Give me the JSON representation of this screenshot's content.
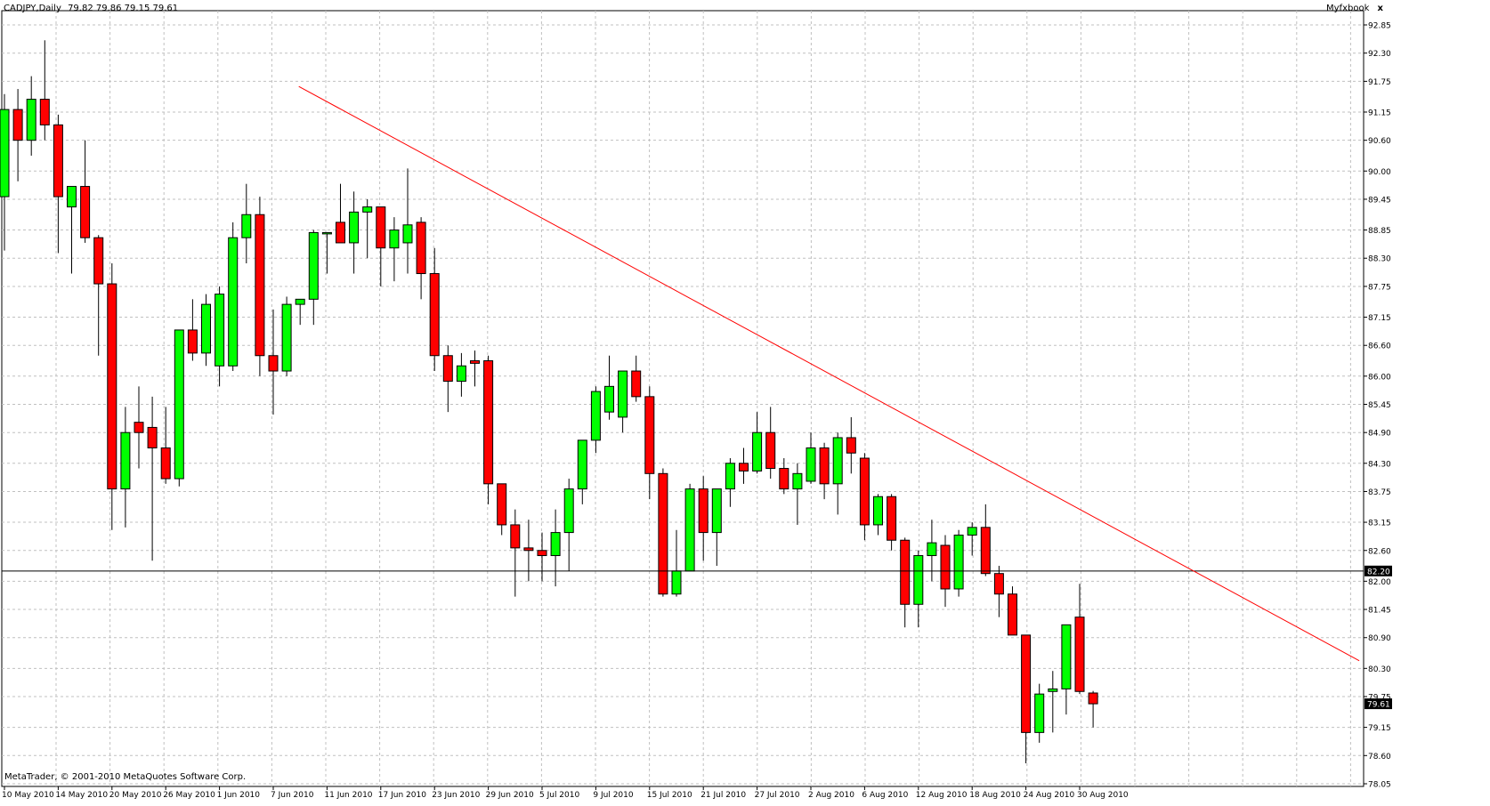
{
  "header": {
    "symbol": "CADJPY,Daily",
    "ohlc": "79.82 79.86 79.15 79.61",
    "panel_name": "Myfxbook",
    "close_glyph": "x"
  },
  "footer": {
    "copyright": "MetaTrader, © 2001-2010 MetaQuotes Software Corp."
  },
  "colors": {
    "background": "#ffffff",
    "grid": "#c0c0c0",
    "bull_body": "#00ff00",
    "bear_body": "#ff0000",
    "wick": "#000000",
    "trendline": "#ff0000",
    "hline": "#000000",
    "price_tag_bg": "#000000",
    "price_tag_text": "#ffffff"
  },
  "chart_data": {
    "type": "candlestick",
    "symbol": "CADJPY",
    "timeframe": "Daily",
    "ylim": [
      78.05,
      92.85
    ],
    "grid": true,
    "y_ticks": [
      "92.85",
      "92.30",
      "91.75",
      "91.15",
      "90.60",
      "90.00",
      "89.45",
      "88.85",
      "88.30",
      "87.75",
      "87.15",
      "86.60",
      "86.00",
      "85.45",
      "84.90",
      "84.30",
      "83.75",
      "83.15",
      "82.60",
      "82.00",
      "81.45",
      "80.90",
      "80.30",
      "79.75",
      "79.15",
      "78.60",
      "78.05"
    ],
    "x_ticks": [
      "10 May 2010",
      "14 May 2010",
      "20 May 2010",
      "26 May 2010",
      "1 Jun 2010",
      "7 Jun 2010",
      "11 Jun 2010",
      "17 Jun 2010",
      "23 Jun 2010",
      "29 Jun 2010",
      "5 Jul 2010",
      "9 Jul 2010",
      "15 Jul 2010",
      "21 Jul 2010",
      "27 Jul 2010",
      "2 Aug 2010",
      "6 Aug 2010",
      "12 Aug 2010",
      "18 Aug 2010",
      "24 Aug 2010",
      "30 Aug 2010"
    ],
    "candles": [
      {
        "o": 89.5,
        "h": 91.5,
        "l": 88.45,
        "c": 91.2
      },
      {
        "o": 91.2,
        "h": 91.6,
        "l": 89.8,
        "c": 90.6
      },
      {
        "o": 90.6,
        "h": 91.85,
        "l": 90.3,
        "c": 91.4
      },
      {
        "o": 91.4,
        "h": 92.55,
        "l": 90.6,
        "c": 90.9
      },
      {
        "o": 90.9,
        "h": 91.1,
        "l": 88.4,
        "c": 89.5
      },
      {
        "o": 89.3,
        "h": 89.6,
        "l": 88.0,
        "c": 89.7
      },
      {
        "o": 89.7,
        "h": 90.6,
        "l": 88.6,
        "c": 88.7
      },
      {
        "o": 88.7,
        "h": 88.75,
        "l": 86.4,
        "c": 87.8
      },
      {
        "o": 87.8,
        "h": 88.2,
        "l": 83.0,
        "c": 83.8
      },
      {
        "o": 83.8,
        "h": 85.4,
        "l": 83.05,
        "c": 84.9
      },
      {
        "o": 85.1,
        "h": 85.8,
        "l": 84.2,
        "c": 84.9
      },
      {
        "o": 85.0,
        "h": 85.6,
        "l": 82.4,
        "c": 84.6
      },
      {
        "o": 84.6,
        "h": 85.4,
        "l": 83.9,
        "c": 84.0
      },
      {
        "o": 84.0,
        "h": 86.9,
        "l": 83.85,
        "c": 86.9
      },
      {
        "o": 86.9,
        "h": 87.5,
        "l": 86.3,
        "c": 86.45
      },
      {
        "o": 86.45,
        "h": 87.6,
        "l": 86.2,
        "c": 87.4
      },
      {
        "o": 86.2,
        "h": 87.75,
        "l": 85.8,
        "c": 87.6
      },
      {
        "o": 86.2,
        "h": 89.0,
        "l": 86.1,
        "c": 88.7
      },
      {
        "o": 88.7,
        "h": 89.75,
        "l": 88.2,
        "c": 89.15
      },
      {
        "o": 89.15,
        "h": 89.5,
        "l": 86.0,
        "c": 86.4
      },
      {
        "o": 86.4,
        "h": 87.3,
        "l": 85.25,
        "c": 86.1
      },
      {
        "o": 86.1,
        "h": 87.55,
        "l": 86.0,
        "c": 87.4
      },
      {
        "o": 87.4,
        "h": 87.5,
        "l": 87.0,
        "c": 87.5
      },
      {
        "o": 87.5,
        "h": 88.85,
        "l": 87.0,
        "c": 88.8
      },
      {
        "o": 88.8,
        "h": 88.8,
        "l": 88.0,
        "c": 88.8
      },
      {
        "o": 89.0,
        "h": 89.75,
        "l": 88.7,
        "c": 88.6
      },
      {
        "o": 88.6,
        "h": 89.6,
        "l": 88.0,
        "c": 89.2
      },
      {
        "o": 89.2,
        "h": 89.45,
        "l": 88.3,
        "c": 89.3
      },
      {
        "o": 89.3,
        "h": 89.3,
        "l": 87.75,
        "c": 88.5
      },
      {
        "o": 88.5,
        "h": 89.1,
        "l": 87.85,
        "c": 88.85
      },
      {
        "o": 88.6,
        "h": 90.05,
        "l": 88.0,
        "c": 88.95
      },
      {
        "o": 89.0,
        "h": 89.1,
        "l": 87.5,
        "c": 88.0
      },
      {
        "o": 88.0,
        "h": 88.5,
        "l": 86.1,
        "c": 86.4
      },
      {
        "o": 86.4,
        "h": 86.6,
        "l": 85.3,
        "c": 85.9
      },
      {
        "o": 85.9,
        "h": 86.45,
        "l": 85.6,
        "c": 86.2
      },
      {
        "o": 86.3,
        "h": 86.5,
        "l": 85.8,
        "c": 86.25
      },
      {
        "o": 86.3,
        "h": 86.4,
        "l": 83.5,
        "c": 83.9
      },
      {
        "o": 83.9,
        "h": 83.9,
        "l": 82.9,
        "c": 83.1
      },
      {
        "o": 83.1,
        "h": 83.4,
        "l": 81.7,
        "c": 82.65
      },
      {
        "o": 82.65,
        "h": 83.2,
        "l": 82.0,
        "c": 82.6
      },
      {
        "o": 82.6,
        "h": 82.95,
        "l": 82.0,
        "c": 82.5
      },
      {
        "o": 82.5,
        "h": 83.4,
        "l": 81.9,
        "c": 82.95
      },
      {
        "o": 82.95,
        "h": 84.0,
        "l": 82.2,
        "c": 83.8
      },
      {
        "o": 83.8,
        "h": 84.7,
        "l": 83.5,
        "c": 84.75
      },
      {
        "o": 84.75,
        "h": 85.8,
        "l": 84.5,
        "c": 85.7
      },
      {
        "o": 85.3,
        "h": 86.4,
        "l": 85.15,
        "c": 85.8
      },
      {
        "o": 85.2,
        "h": 86.05,
        "l": 84.9,
        "c": 86.1
      },
      {
        "o": 86.1,
        "h": 86.4,
        "l": 85.5,
        "c": 85.6
      },
      {
        "o": 85.6,
        "h": 85.8,
        "l": 83.6,
        "c": 84.1
      },
      {
        "o": 84.1,
        "h": 84.2,
        "l": 81.7,
        "c": 81.75
      },
      {
        "o": 81.75,
        "h": 83.0,
        "l": 81.7,
        "c": 82.2
      },
      {
        "o": 82.2,
        "h": 83.9,
        "l": 82.2,
        "c": 83.8
      },
      {
        "o": 83.8,
        "h": 84.05,
        "l": 82.4,
        "c": 82.95
      },
      {
        "o": 82.95,
        "h": 83.8,
        "l": 82.3,
        "c": 83.8
      },
      {
        "o": 83.8,
        "h": 84.4,
        "l": 83.45,
        "c": 84.3
      },
      {
        "o": 84.3,
        "h": 84.6,
        "l": 83.9,
        "c": 84.15
      },
      {
        "o": 84.15,
        "h": 85.3,
        "l": 84.1,
        "c": 84.9
      },
      {
        "o": 84.9,
        "h": 85.4,
        "l": 84.0,
        "c": 84.2
      },
      {
        "o": 84.2,
        "h": 84.4,
        "l": 83.7,
        "c": 83.8
      },
      {
        "o": 83.8,
        "h": 84.3,
        "l": 83.1,
        "c": 84.1
      },
      {
        "o": 83.95,
        "h": 84.9,
        "l": 83.9,
        "c": 84.6
      },
      {
        "o": 84.6,
        "h": 84.7,
        "l": 83.6,
        "c": 83.9
      },
      {
        "o": 83.9,
        "h": 84.9,
        "l": 83.3,
        "c": 84.8
      },
      {
        "o": 84.8,
        "h": 85.2,
        "l": 84.1,
        "c": 84.5
      },
      {
        "o": 84.4,
        "h": 84.5,
        "l": 82.8,
        "c": 83.1
      },
      {
        "o": 83.1,
        "h": 83.7,
        "l": 82.9,
        "c": 83.65
      },
      {
        "o": 83.65,
        "h": 83.7,
        "l": 82.6,
        "c": 82.8
      },
      {
        "o": 82.8,
        "h": 82.85,
        "l": 81.1,
        "c": 81.55
      },
      {
        "o": 81.55,
        "h": 82.6,
        "l": 81.1,
        "c": 82.5
      },
      {
        "o": 82.5,
        "h": 83.2,
        "l": 82.0,
        "c": 82.75
      },
      {
        "o": 82.7,
        "h": 82.9,
        "l": 81.5,
        "c": 81.85
      },
      {
        "o": 81.85,
        "h": 83.0,
        "l": 81.7,
        "c": 82.9
      },
      {
        "o": 82.9,
        "h": 83.15,
        "l": 82.5,
        "c": 83.05
      },
      {
        "o": 83.05,
        "h": 83.5,
        "l": 82.1,
        "c": 82.15
      },
      {
        "o": 82.15,
        "h": 82.3,
        "l": 81.3,
        "c": 81.75
      },
      {
        "o": 81.75,
        "h": 81.9,
        "l": 80.95,
        "c": 80.95
      },
      {
        "o": 80.95,
        "h": 80.95,
        "l": 78.45,
        "c": 79.05
      },
      {
        "o": 79.05,
        "h": 80.0,
        "l": 78.85,
        "c": 79.8
      },
      {
        "o": 79.85,
        "h": 80.25,
        "l": 79.05,
        "c": 79.9
      },
      {
        "o": 79.9,
        "h": 81.15,
        "l": 79.4,
        "c": 81.15
      },
      {
        "o": 81.3,
        "h": 81.95,
        "l": 79.8,
        "c": 79.85
      },
      {
        "o": 79.82,
        "h": 79.86,
        "l": 79.15,
        "c": 79.61
      }
    ],
    "trendline": {
      "x_from": 21.9,
      "y_from": 91.65,
      "x_to": 100.8,
      "y_to": 80.45
    },
    "hline": 82.2,
    "price_tags": [
      {
        "value": 82.2,
        "label": "82.20"
      },
      {
        "value": 79.61,
        "label": "79.61"
      }
    ]
  }
}
